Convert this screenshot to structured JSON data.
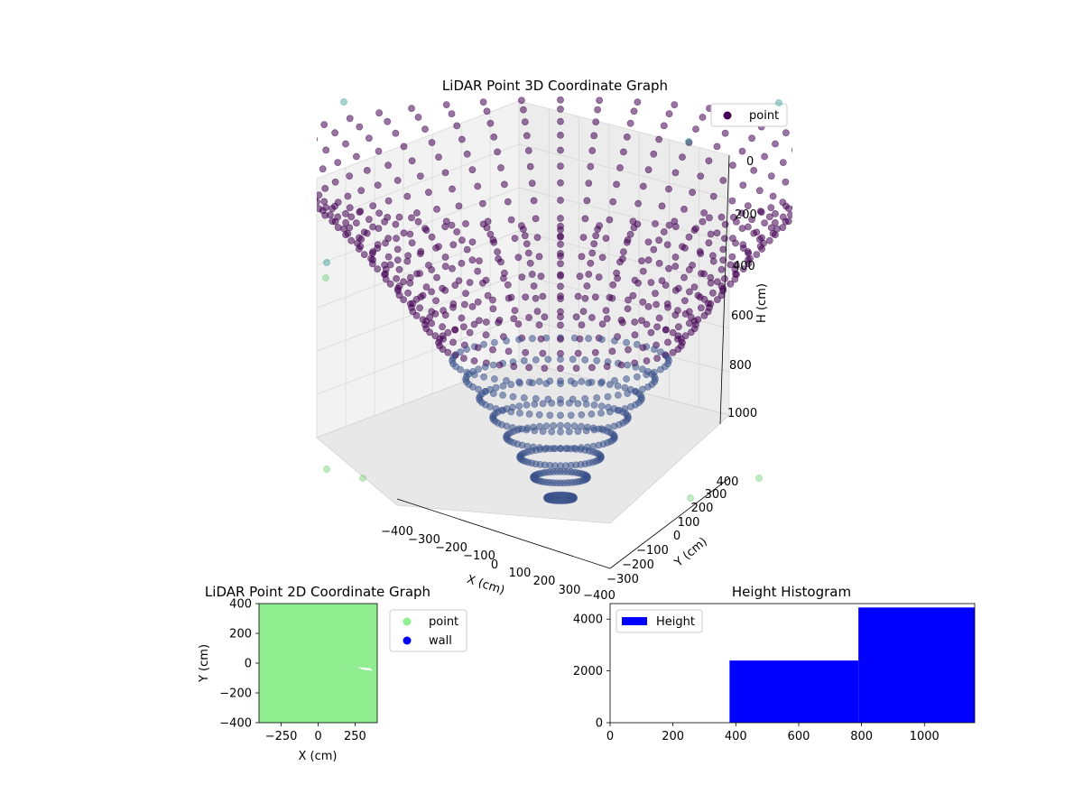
{
  "chart_data": [
    {
      "type": "scatter",
      "projection": "3d",
      "title": "LiDAR Point 3D Coordinate Graph",
      "xlabel": "X (cm)",
      "ylabel": "Y (cm)",
      "zlabel": "H (cm)",
      "xticks": [
        "−400",
        "−300",
        "−200",
        "−100",
        "0",
        "100",
        "200",
        "300"
      ],
      "yticks": [
        "−400",
        "−300",
        "−200",
        "−100",
        "0",
        "100",
        "200",
        "300",
        "400"
      ],
      "zticks": [
        "0",
        "200",
        "400",
        "600",
        "800",
        "1000"
      ],
      "xlim": [
        -400,
        400
      ],
      "ylim": [
        -400,
        400
      ],
      "zlim": [
        1150,
        0
      ],
      "z_axis_inverted": true,
      "legend": [
        {
          "name": "point",
          "color": "#440154"
        }
      ],
      "legend_position": "top-right",
      "grid": true,
      "shape": "bowl of points, H increasing from 0 at the rim toward ~1150 at the center",
      "colormap": [
        "#440154",
        "#3b528b",
        "#21918c",
        "#5ec962"
      ]
    },
    {
      "type": "scatter",
      "title": "LiDAR Point 2D Coordinate Graph",
      "xlabel": "X (cm)",
      "ylabel": "Y (cm)",
      "xticks": [
        "−250",
        "0",
        "250"
      ],
      "yticks": [
        "−400",
        "−200",
        "0",
        "200",
        "400"
      ],
      "xlim": [
        -400,
        400
      ],
      "ylim": [
        -400,
        400
      ],
      "legend": [
        {
          "name": "point",
          "color": "#90ee90"
        },
        {
          "name": "wall",
          "color": "#0000ff"
        }
      ],
      "legend_position": "outside-right",
      "fill_color": "#90ee90"
    },
    {
      "type": "bar",
      "title": "Height Histogram",
      "xticks": [
        "0",
        "200",
        "400",
        "600",
        "800",
        "1000"
      ],
      "yticks": [
        "0",
        "2000",
        "4000"
      ],
      "xlim": [
        0,
        1160
      ],
      "ylim": [
        0,
        4600
      ],
      "series": [
        {
          "name": "Height",
          "color": "#0000ff",
          "bins": [
            {
              "start": 380,
              "end": 790,
              "count": 2400
            },
            {
              "start": 790,
              "end": 1160,
              "count": 4450
            }
          ]
        }
      ],
      "legend_position": "top-left"
    }
  ]
}
